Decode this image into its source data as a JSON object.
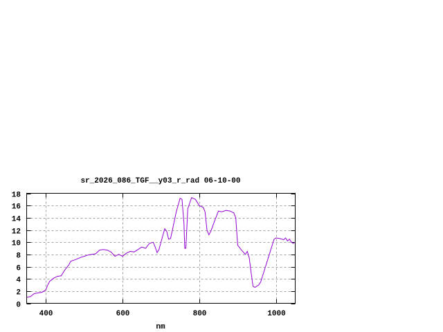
{
  "chart_data": {
    "type": "line",
    "title": "sr_2026_086_TGF__y03_r_rad 06-10-00",
    "xlabel": "nm",
    "ylabel": "",
    "xlim": [
      350,
      1050
    ],
    "ylim": [
      0,
      18
    ],
    "xticks": [
      400,
      600,
      800,
      1000
    ],
    "yticks": [
      0,
      2,
      4,
      6,
      8,
      10,
      12,
      14,
      16,
      18
    ],
    "grid": true,
    "line_color": "#9400d3",
    "series": [
      {
        "x": [
          350,
          360,
          370,
          380,
          390,
          400,
          405,
          410,
          420,
          430,
          440,
          450,
          460,
          465,
          475,
          490,
          500,
          510,
          520,
          530,
          540,
          550,
          560,
          570,
          580,
          590,
          600,
          610,
          620,
          630,
          640,
          650,
          660,
          670,
          680,
          685,
          690,
          695,
          700,
          710,
          715,
          720,
          725,
          730,
          740,
          750,
          755,
          760,
          762,
          765,
          770,
          780,
          790,
          800,
          810,
          815,
          820,
          825,
          830,
          840,
          850,
          855,
          860,
          870,
          880,
          890,
          895,
          900,
          910,
          920,
          925,
          930,
          935,
          940,
          945,
          955,
          960,
          970,
          980,
          990,
          995,
          1000,
          1010,
          1020,
          1025,
          1030,
          1035,
          1040,
          1045,
          1050
        ],
        "y": [
          1.0,
          1.1,
          1.6,
          1.7,
          1.8,
          2.2,
          3.0,
          3.6,
          4.1,
          4.4,
          4.5,
          5.5,
          6.3,
          6.9,
          7.1,
          7.5,
          7.7,
          7.9,
          8.0,
          8.1,
          8.7,
          8.8,
          8.7,
          8.4,
          7.7,
          8.0,
          7.7,
          8.2,
          8.5,
          8.4,
          8.8,
          9.2,
          9.0,
          9.8,
          10.0,
          9.2,
          8.3,
          8.8,
          10.0,
          12.2,
          11.8,
          10.5,
          10.6,
          12.0,
          15.0,
          17.2,
          17.0,
          13.0,
          9.0,
          9.0,
          15.5,
          17.3,
          17.0,
          16.0,
          15.7,
          15.0,
          12.0,
          11.2,
          11.8,
          13.5,
          15.1,
          15.0,
          15.0,
          15.2,
          15.1,
          14.8,
          14.0,
          9.5,
          8.7,
          8.0,
          8.5,
          7.5,
          5.0,
          2.8,
          2.6,
          3.0,
          3.5,
          5.5,
          7.5,
          9.5,
          10.5,
          10.7,
          10.6,
          10.4,
          10.7,
          10.2,
          10.5,
          10.0,
          9.8,
          10.0
        ]
      }
    ]
  }
}
